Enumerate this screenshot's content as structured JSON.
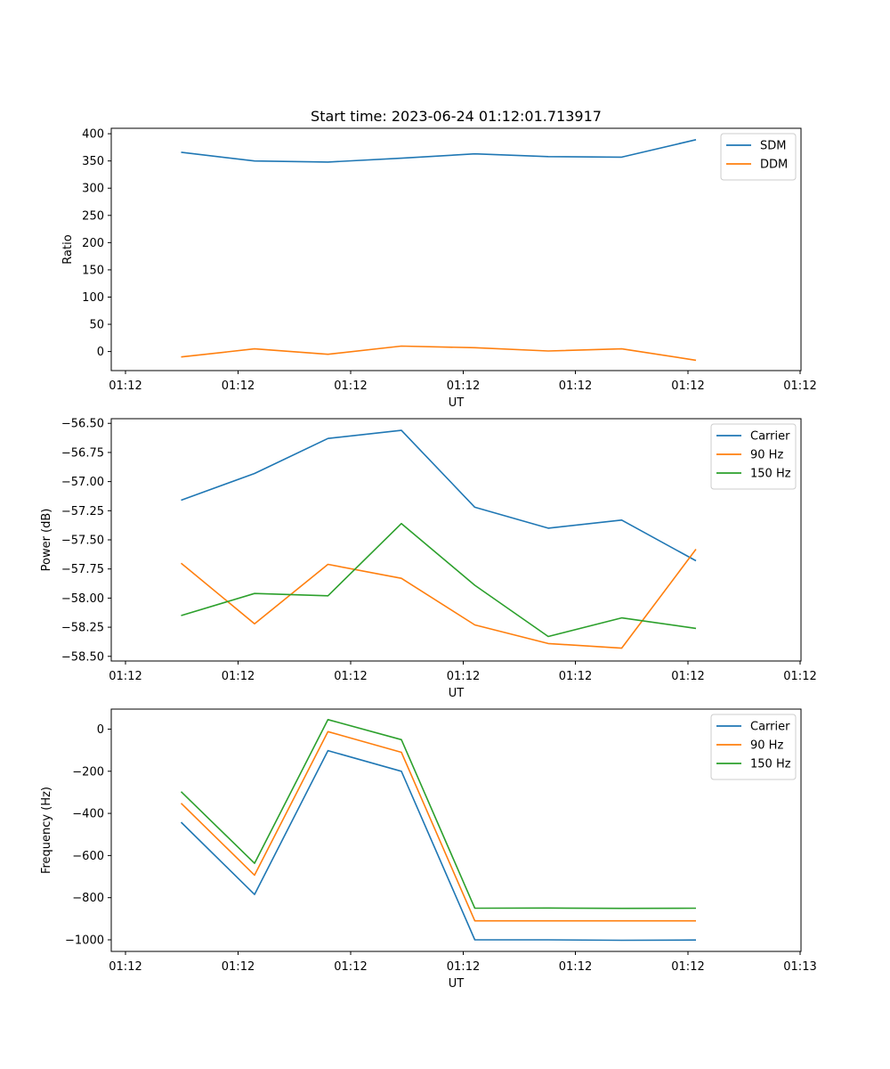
{
  "figure": {
    "title": "Start time: 2023-06-24 01:12:01.713917"
  },
  "chart_data": [
    {
      "type": "line",
      "xlabel": "UT",
      "ylabel": "Ratio",
      "x_tick_labels": [
        "01:12",
        "01:12",
        "01:12",
        "01:12",
        "01:12",
        "01:12",
        "01:12"
      ],
      "ylim": [
        -35,
        410
      ],
      "y_ticks": [
        0,
        50,
        100,
        150,
        200,
        250,
        300,
        350,
        400
      ],
      "y_tick_labels": [
        "0",
        "50",
        "100",
        "150",
        "200",
        "250",
        "300",
        "350",
        "400"
      ],
      "legend_position": "top-right",
      "series": [
        {
          "name": "SDM",
          "color": "#1f77b4",
          "values": [
            366,
            350,
            348,
            355,
            363,
            358,
            357,
            389
          ]
        },
        {
          "name": "DDM",
          "color": "#ff7f0e",
          "values": [
            -10,
            5,
            -5,
            10,
            7,
            1,
            5,
            -16
          ]
        }
      ]
    },
    {
      "type": "line",
      "xlabel": "UT",
      "ylabel": "Power (dB)",
      "x_tick_labels": [
        "01:12",
        "01:12",
        "01:12",
        "01:12",
        "01:12",
        "01:12",
        "01:12"
      ],
      "ylim": [
        -58.54,
        -56.46
      ],
      "y_ticks": [
        -58.5,
        -58.25,
        -58.0,
        -57.75,
        -57.5,
        -57.25,
        -57.0,
        -56.75,
        -56.5
      ],
      "y_tick_labels": [
        "−58.50",
        "−58.25",
        "−58.00",
        "−57.75",
        "−57.50",
        "−57.25",
        "−57.00",
        "−56.75",
        "−56.50"
      ],
      "legend_position": "top-right",
      "series": [
        {
          "name": "Carrier",
          "color": "#1f77b4",
          "values": [
            -57.16,
            -56.93,
            -56.63,
            -56.56,
            -57.22,
            -57.4,
            -57.33,
            -57.68
          ]
        },
        {
          "name": "90 Hz",
          "color": "#ff7f0e",
          "values": [
            -57.7,
            -58.22,
            -57.71,
            -57.83,
            -58.23,
            -58.39,
            -58.43,
            -57.58
          ]
        },
        {
          "name": "150 Hz",
          "color": "#2ca02c",
          "values": [
            -58.15,
            -57.96,
            -57.98,
            -57.36,
            -57.89,
            -58.33,
            -58.17,
            -58.26
          ]
        }
      ]
    },
    {
      "type": "line",
      "xlabel": "UT",
      "ylabel": "Frequency (Hz)",
      "x_tick_labels": [
        "01:12",
        "01:12",
        "01:12",
        "01:12",
        "01:12",
        "01:12",
        "01:13"
      ],
      "ylim": [
        -1055,
        95
      ],
      "y_ticks": [
        0,
        -200,
        -400,
        -600,
        -800,
        -1000
      ],
      "y_tick_labels": [
        "0",
        "−200",
        "−400",
        "−600",
        "−800",
        "−1000"
      ],
      "legend_position": "top-right",
      "series": [
        {
          "name": "Carrier",
          "color": "#1f77b4",
          "values": [
            -442,
            -785,
            -102,
            -200,
            -1000,
            -1000,
            -1002,
            -1001
          ]
        },
        {
          "name": "90 Hz",
          "color": "#ff7f0e",
          "values": [
            -352,
            -693,
            -12,
            -110,
            -910,
            -910,
            -910,
            -910
          ]
        },
        {
          "name": "150 Hz",
          "color": "#2ca02c",
          "values": [
            -297,
            -637,
            45,
            -50,
            -850,
            -849,
            -851,
            -850
          ]
        }
      ]
    }
  ]
}
